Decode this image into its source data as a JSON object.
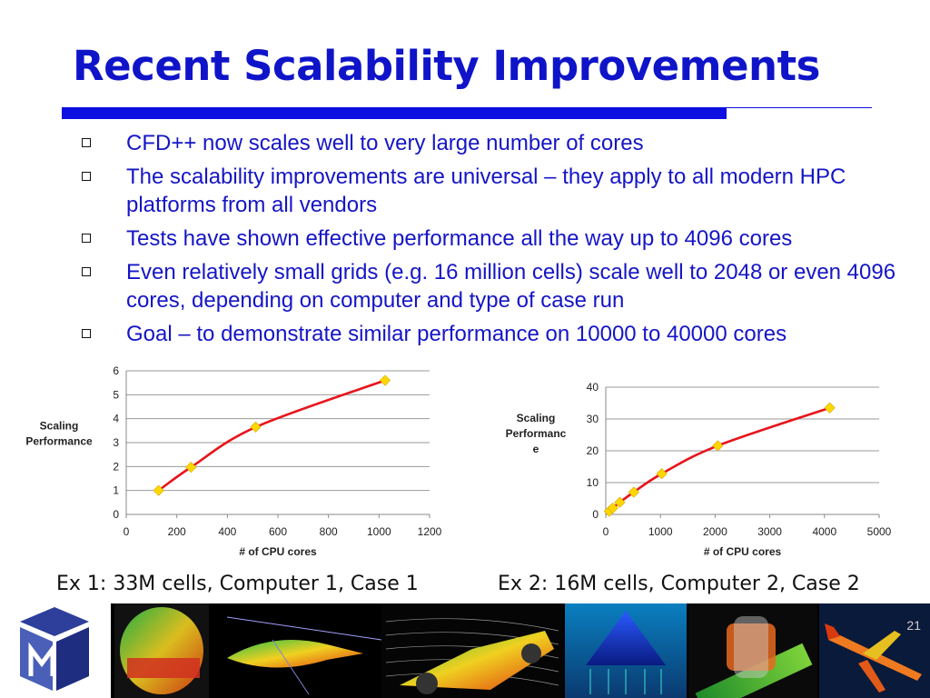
{
  "slide": {
    "title": "Recent Scalability Improvements",
    "page_number": "21",
    "bullets": [
      "CFD++ now scales well to very large number of cores",
      "The scalability improvements are universal – they apply to all modern HPC platforms from all vendors",
      "Tests have shown effective performance all the way up to 4096 cores",
      "Even relatively small grids (e.g. 16 million cells) scale well to 2048 or even 4096 cores, depending on computer and type of case run",
      "Goal – to demonstrate similar performance on 10000 to 40000 cores"
    ],
    "captions": [
      "Ex 1: 33M cells, Computer 1, Case 1",
      "Ex 2: 16M cells, Computer 2, Case 2"
    ],
    "colors": {
      "title": "#0f14c9",
      "rule": "#0c10e0",
      "line": "#e8141c",
      "marker": "#ffd700"
    }
  },
  "chart_data": [
    {
      "type": "line",
      "ylabel": "Scaling Performance",
      "xlabel": "# of CPU cores",
      "xlim": [
        0,
        1200
      ],
      "ylim": [
        0,
        6
      ],
      "xticks": [
        "0",
        "200",
        "400",
        "600",
        "800",
        "1000",
        "1200"
      ],
      "yticks": [
        "0",
        "1",
        "2",
        "3",
        "4",
        "5",
        "6"
      ],
      "grid": true,
      "series": [
        {
          "x": [
            128,
            256,
            512,
            1024
          ],
          "values": [
            1.0,
            1.97,
            3.65,
            5.6
          ]
        }
      ]
    },
    {
      "type": "line",
      "ylabel": "Scaling Performanc e",
      "xlabel": "# of CPU cores",
      "xlim": [
        0,
        5000
      ],
      "ylim": [
        0,
        40
      ],
      "xticks": [
        "0",
        "1000",
        "2000",
        "3000",
        "4000",
        "5000"
      ],
      "yticks": [
        "0",
        "10",
        "20",
        "30",
        "40"
      ],
      "grid": true,
      "series": [
        {
          "x": [
            64,
            128,
            256,
            512,
            1024,
            2048,
            4096
          ],
          "values": [
            1.0,
            2.0,
            3.8,
            7.0,
            12.8,
            21.6,
            33.5
          ]
        }
      ]
    }
  ]
}
